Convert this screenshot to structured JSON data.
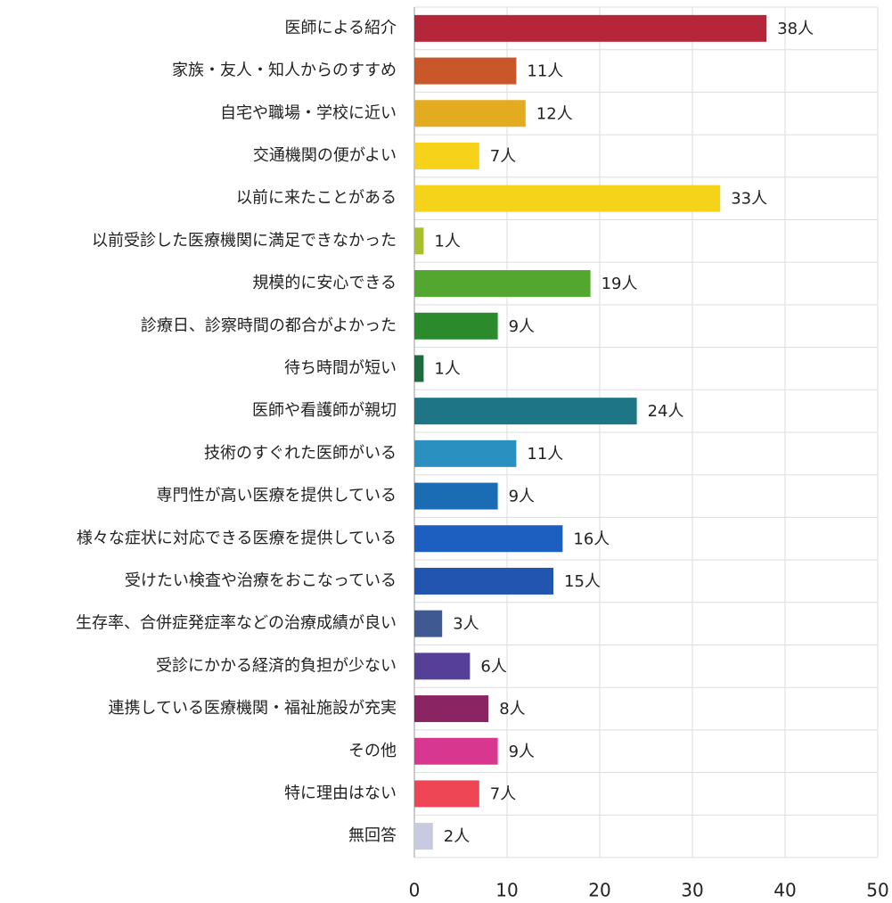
{
  "chart_data": {
    "type": "barh",
    "categories": [
      "医師による紹介",
      "家族・友人・知人からのすすめ",
      "自宅や職場・学校に近い",
      "交通機関の便がよい",
      "以前に来たことがある",
      "以前受診した医療機関に満足できなかった",
      "規模的に安心できる",
      "診療日、診察時間の都合がよかった",
      "待ち時間が短い",
      "医師や看護師が親切",
      "技術のすぐれた医師がいる",
      "専門性が高い医療を提供している",
      "様々な症状に対応できる医療を提供している",
      "受けたい検査や治療をおこなっている",
      "生存率、合併症発症率などの治療成績が良い",
      "受診にかかる経済的負担が少ない",
      "連携している医療機関・福祉施設が充実",
      "その他",
      "特に理由はない",
      "無回答"
    ],
    "values": [
      38,
      11,
      12,
      7,
      33,
      1,
      19,
      9,
      1,
      24,
      11,
      9,
      16,
      15,
      3,
      6,
      8,
      9,
      7,
      2
    ],
    "value_labels": [
      "38人",
      "11人",
      "12人",
      "7人",
      "33人",
      "1人",
      "19人",
      "9人",
      "1人",
      "24人",
      "11人",
      "9人",
      "16人",
      "15人",
      "3人",
      "6人",
      "8人",
      "9人",
      "7人",
      "2人"
    ],
    "colors": [
      "#b5263a",
      "#c9572a",
      "#e3ab1f",
      "#f7d21b",
      "#f5d31a",
      "#a7bf2e",
      "#53a62e",
      "#2a8a2c",
      "#1c6b3c",
      "#1d7586",
      "#2a90c0",
      "#1b6db3",
      "#1d5fc0",
      "#2155b0",
      "#3f5a93",
      "#553f97",
      "#8a2463",
      "#d8378f",
      "#ee4655",
      "#c8cbe0"
    ],
    "xlim": [
      0,
      50
    ],
    "xticks": [
      0,
      10,
      20,
      30,
      40,
      50
    ],
    "grid": true
  }
}
